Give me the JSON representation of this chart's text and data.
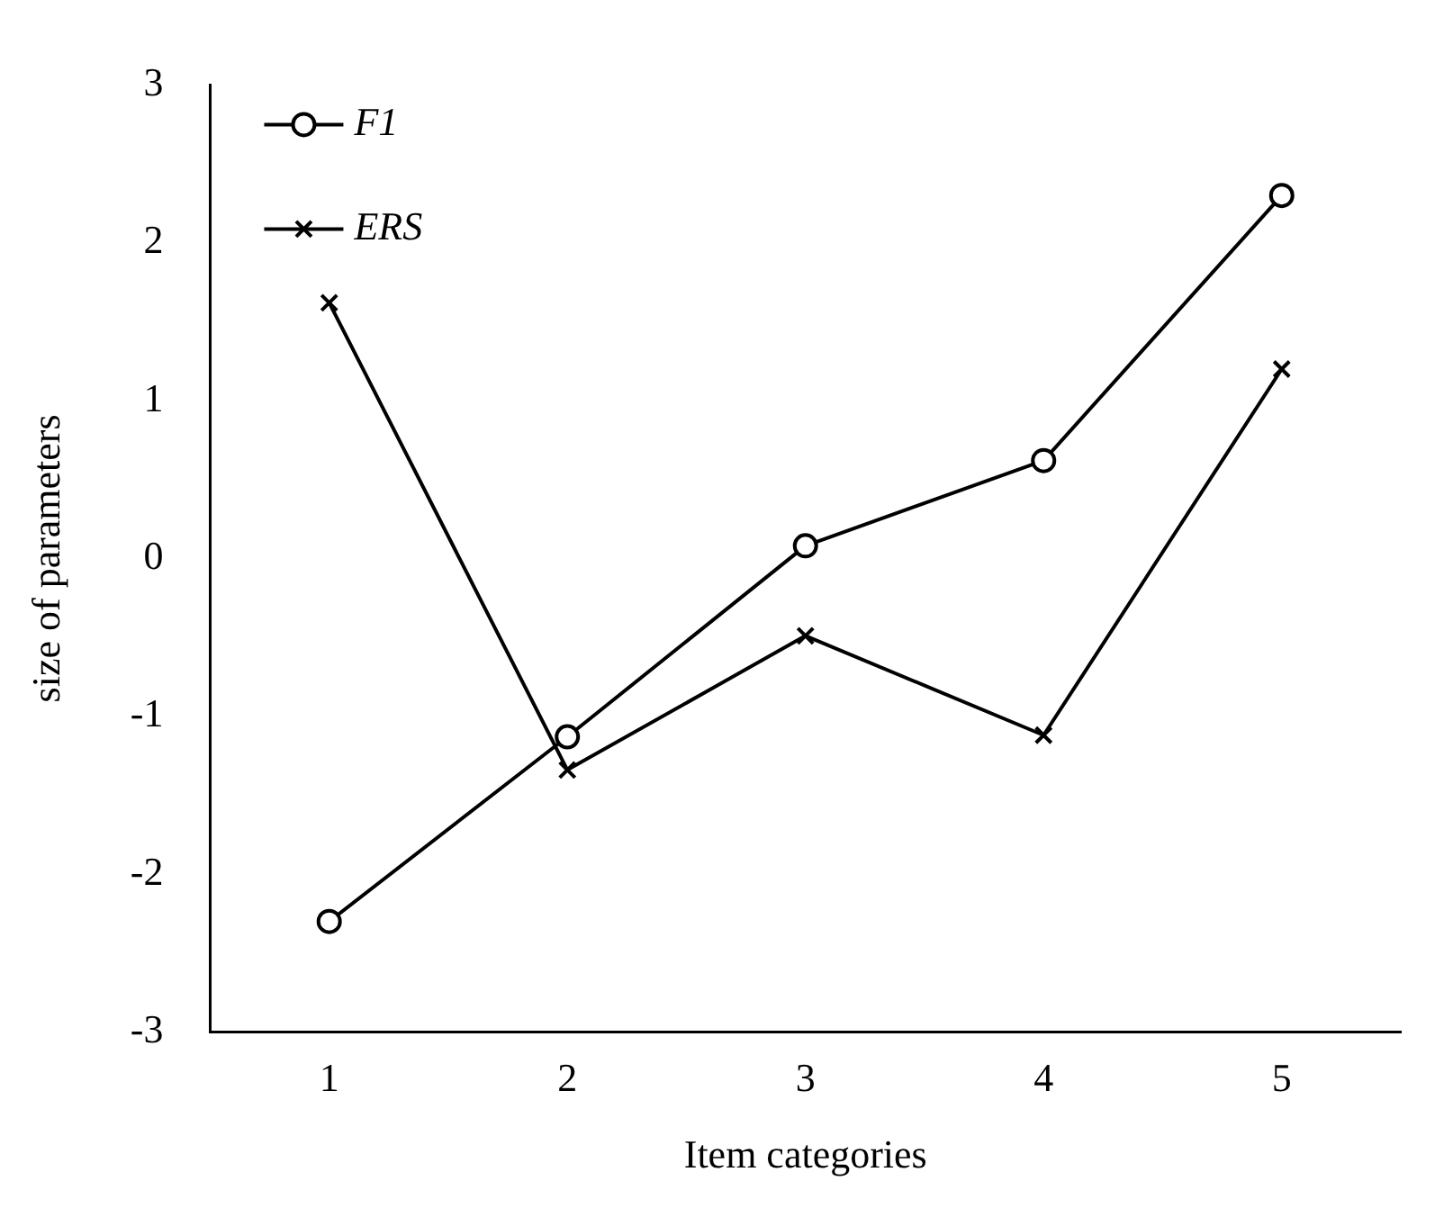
{
  "chart_data": {
    "type": "line",
    "xlabel": "Item categories",
    "ylabel": "size of parameters",
    "categories": [
      "1",
      "2",
      "3",
      "4",
      "5"
    ],
    "series": [
      {
        "name": "F1",
        "color": "#000000",
        "marker": "circle",
        "values": [
          -2.3,
          -1.13,
          0.08,
          0.62,
          2.3
        ]
      },
      {
        "name": "ERS",
        "color": "#000000",
        "marker": "cross",
        "values": [
          1.62,
          -1.34,
          -0.49,
          -1.12,
          1.2
        ]
      }
    ],
    "ylim": [
      -3,
      3
    ],
    "yticks": [
      -3,
      -2,
      -1,
      0,
      1,
      2,
      3
    ],
    "grid": false,
    "legend": "top left",
    "line_style": "solid"
  }
}
